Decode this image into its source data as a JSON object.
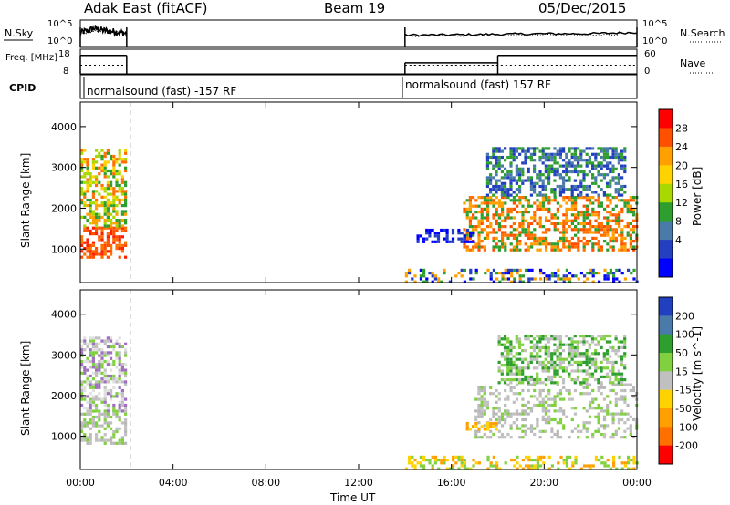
{
  "header": {
    "site": "Adak East (fitACF)",
    "beam": "Beam 19",
    "date": "05/Dec/2015"
  },
  "colors": {
    "axis": "#000000",
    "dash_line": "#bbbbbb"
  },
  "chart_data": [
    {
      "type": "line",
      "panel": "noise",
      "left_label": "N.Sky",
      "right_label": "N.Search",
      "y_left_ticks": [
        "10^5",
        "10^0"
      ],
      "y_right_ticks": [
        "10^5",
        "10^0"
      ],
      "x": [
        0,
        0.3,
        0.6,
        1.0,
        1.5,
        2.0,
        14.0,
        16.0,
        18.0,
        20.0,
        22.0,
        24.0
      ],
      "series": [
        {
          "name": "N.Sky",
          "style": "solid",
          "values": [
            0.55,
            0.6,
            0.7,
            0.62,
            0.58,
            0.5,
            0.45,
            0.46,
            0.48,
            0.5,
            0.5,
            0.55
          ]
        },
        {
          "name": "N.Search",
          "style": "dotted",
          "values": [
            0.5,
            0.55,
            0.6,
            0.58,
            0.55,
            0.5,
            0.42,
            0.43,
            0.45,
            0.46,
            0.46,
            0.5
          ]
        }
      ],
      "segments": [
        [
          0,
          2.0
        ],
        [
          14.0,
          24.0
        ]
      ]
    },
    {
      "type": "line",
      "panel": "frequency",
      "left_label": "Freq. [MHz]",
      "right_label": "Nave",
      "y_left_ticks": [
        "18",
        "8"
      ],
      "y_right_ticks": [
        "60",
        "0"
      ],
      "series": [
        {
          "name": "Freq.",
          "style": "solid",
          "steps": [
            [
              0,
              2.0,
              0.75
            ],
            [
              14.0,
              18.0,
              0.45
            ],
            [
              18.0,
              24.0,
              0.75
            ]
          ]
        },
        {
          "name": "Nave",
          "style": "dotted",
          "steps": [
            [
              0,
              2.0,
              0.35
            ],
            [
              14.0,
              24.0,
              0.35
            ]
          ]
        }
      ]
    },
    {
      "type": "table",
      "panel": "cpid",
      "label": "CPID",
      "entries": [
        {
          "start": 0,
          "text": "normalsound (fast) -157 RF"
        },
        {
          "start": 14.0,
          "text": "normalsound (fast) 157 RF"
        }
      ]
    },
    {
      "type": "heatmap",
      "panel": "power",
      "ylabel": "Slant Range [km]",
      "xlabel": "",
      "yticks": [
        1000,
        2000,
        3000,
        4000
      ],
      "ylim": [
        180,
        4600
      ],
      "xlim": [
        0,
        24
      ],
      "colorbar": {
        "label": "Power [dB]",
        "ticks": [
          "28",
          "24",
          "20",
          "16",
          "12",
          "8",
          "4"
        ],
        "colors": [
          "#ff0000",
          "#ff5000",
          "#ffa000",
          "#ffd200",
          "#a8d800",
          "#2e9e2e",
          "#4a7aaa",
          "#2340c0",
          "#0000ff"
        ]
      },
      "regions": [
        {
          "t0": 0,
          "t1": 2.0,
          "r0": 820,
          "r1": 1550,
          "colors": [
            "#ff2000",
            "#ff5000",
            "#ff7000"
          ]
        },
        {
          "t0": 0,
          "t1": 2.0,
          "r0": 1550,
          "r1": 2100,
          "colors": [
            "#2e9e2e",
            "#a8d800",
            "#ffa000"
          ]
        },
        {
          "t0": 0,
          "t1": 2.0,
          "r0": 2100,
          "r1": 3450,
          "colors": [
            "#ff7000",
            "#2e9e2e",
            "#a8d800",
            "#ffd200"
          ]
        },
        {
          "t0": 14.0,
          "t1": 24.0,
          "r0": 180,
          "r1": 520,
          "colors": [
            "#2340c0",
            "#0000ff",
            "#2e9e2e",
            "#ffa000"
          ]
        },
        {
          "t0": 16.5,
          "t1": 24.0,
          "r0": 1000,
          "r1": 2300,
          "colors": [
            "#ff5000",
            "#ff7000",
            "#ffa000",
            "#2e9e2e"
          ]
        },
        {
          "t0": 17.5,
          "t1": 23.5,
          "r0": 2300,
          "r1": 3500,
          "colors": [
            "#4a7aaa",
            "#2340c0",
            "#2e9e2e"
          ]
        },
        {
          "t0": 14.5,
          "t1": 17.0,
          "r0": 1150,
          "r1": 1500,
          "colors": [
            "#2340c0",
            "#0000ff"
          ]
        }
      ]
    },
    {
      "type": "heatmap",
      "panel": "velocity",
      "ylabel": "Slant Range [km]",
      "xlabel": "Time UT",
      "yticks": [
        1000,
        2000,
        3000,
        4000
      ],
      "ylim": [
        180,
        4600
      ],
      "xlim": [
        0,
        24
      ],
      "xticks": [
        "00:00",
        "04:00",
        "08:00",
        "12:00",
        "16:00",
        "20:00",
        "00:00"
      ],
      "colorbar": {
        "label": "Velocity [m s^-1]",
        "ticks": [
          "200",
          "100",
          "50",
          "15",
          "-15",
          "-50",
          "-100",
          "-200"
        ],
        "colors": [
          "#2040c0",
          "#4a7aaa",
          "#2e9e2e",
          "#80d040",
          "#c0c0c0",
          "#ffd200",
          "#ffa000",
          "#ff7000",
          "#ff0000"
        ]
      },
      "regions": [
        {
          "t0": 0,
          "t1": 2.0,
          "r0": 800,
          "r1": 1650,
          "colors": [
            "#c0c0c0",
            "#b8b8b8",
            "#80d040"
          ]
        },
        {
          "t0": 0,
          "t1": 2.0,
          "r0": 1650,
          "r1": 3450,
          "colors": [
            "#c0c0c0",
            "#e0e0e0",
            "#80d040",
            "#a070c0"
          ]
        },
        {
          "t0": 14.0,
          "t1": 24.0,
          "r0": 180,
          "r1": 520,
          "colors": [
            "#ffd200",
            "#ffa000",
            "#80d040"
          ]
        },
        {
          "t0": 17.0,
          "t1": 24.0,
          "r0": 1000,
          "r1": 2300,
          "colors": [
            "#c0c0c0",
            "#b8b8b8",
            "#80d040"
          ]
        },
        {
          "t0": 18.0,
          "t1": 23.5,
          "r0": 2300,
          "r1": 3500,
          "colors": [
            "#c0c0c0",
            "#80d040",
            "#2e9e2e"
          ]
        },
        {
          "t0": 16.5,
          "t1": 18.0,
          "r0": 1150,
          "r1": 1350,
          "colors": [
            "#ffa000",
            "#ffd200"
          ]
        }
      ]
    }
  ]
}
